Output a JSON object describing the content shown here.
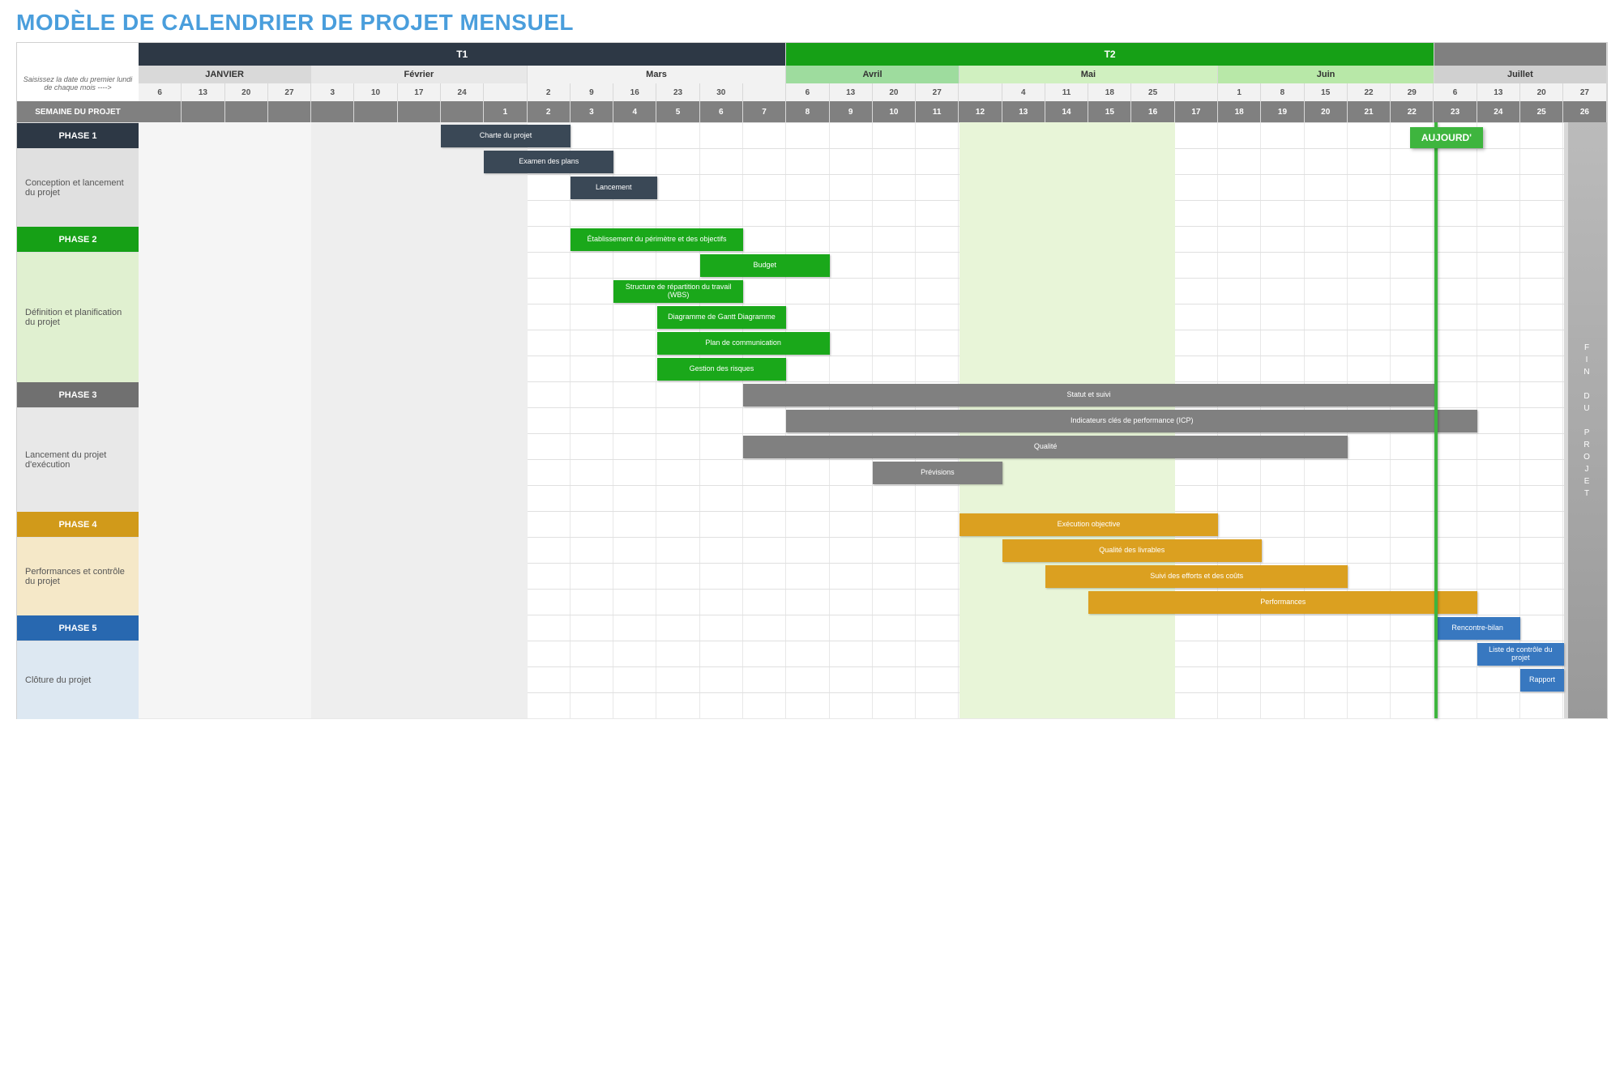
{
  "title": "MODÈLE DE CALENDRIER DE PROJET MENSUEL",
  "side_note": "Saisissez la date du premier lundi de chaque mois ---->",
  "week_label": "SEMAINE DU PROJET",
  "end_label": "FIN DU PROJET",
  "today_label": "AUJOURD'",
  "today_week": 23,
  "total_weeks": 30,
  "colors": {
    "title": "#4a9edc",
    "q1_bg": "#2d3845",
    "q2_bg": "#16a016",
    "q3_bg": "#808080",
    "m_jan": "#d9d9d9",
    "m_feb": "#e8e8e8",
    "m_mar": "#f2f2f2",
    "m_apr": "#9edc9e",
    "m_may": "#d0f0c0",
    "m_jun": "#b8e8a8",
    "m_jul": "#d0d0d0",
    "shade_jan": "#f5f5f5",
    "shade_feb": "#eeeeee",
    "shade_may": "#e8f5d8",
    "shade_end": "#d8d8d8",
    "phase1": "#2d3845",
    "phase1_bg": "#e0e0e0",
    "phase1_bar": "#3a4856",
    "phase2": "#16a016",
    "phase2_bg": "#e0f0d0",
    "phase2_bar": "#1aa81a",
    "phase3": "#707070",
    "phase3_bg": "#e8e8e8",
    "phase3_bar": "#808080",
    "phase4": "#d19a1a",
    "phase4_bg": "#f5e8c8",
    "phase4_bar": "#dba020",
    "phase5": "#2868b0",
    "phase5_bg": "#dde8f2",
    "phase5_bar": "#3878c0"
  },
  "quarters": [
    {
      "label": "T1",
      "span": 15,
      "color_key": "q1_bg"
    },
    {
      "label": "T2",
      "span": 15,
      "color_key": "q2_bg"
    },
    {
      "label": "",
      "span": 4,
      "color_key": "q3_bg"
    }
  ],
  "months": [
    {
      "label": "JANVIER",
      "span": 4,
      "bg_key": "m_jan"
    },
    {
      "label": "Février",
      "span": 5,
      "bg_key": "m_feb"
    },
    {
      "label": "Mars",
      "span": 6,
      "bg_key": "m_mar"
    },
    {
      "label": "Avril",
      "span": 4,
      "bg_key": "m_apr"
    },
    {
      "label": "Mai",
      "span": 6,
      "bg_key": "m_may"
    },
    {
      "label": "Juin",
      "span": 5,
      "bg_key": "m_jun"
    },
    {
      "label": "Juillet",
      "span": 4,
      "bg_key": "m_jul"
    }
  ],
  "days": [
    "6",
    "13",
    "20",
    "27",
    "3",
    "10",
    "17",
    "24",
    "",
    "2",
    "9",
    "16",
    "23",
    "30",
    "",
    "6",
    "13",
    "20",
    "27",
    "",
    "4",
    "11",
    "18",
    "25",
    "",
    "1",
    "8",
    "15",
    "22",
    "29",
    "6",
    "13",
    "20",
    "27"
  ],
  "weeks": [
    "",
    "",
    "",
    "",
    "",
    "",
    "",
    "",
    "1",
    "2",
    "3",
    "4",
    "5",
    "6",
    "7",
    "8",
    "9",
    "10",
    "11",
    "12",
    "13",
    "14",
    "15",
    "16",
    "17",
    "18",
    "19",
    "20",
    "21",
    "22",
    "23",
    "24",
    "25",
    "26"
  ],
  "shades": [
    {
      "start": 1,
      "span": 4,
      "color_key": "shade_jan"
    },
    {
      "start": 5,
      "span": 5,
      "color_key": "shade_feb"
    },
    {
      "start": 20,
      "span": 5,
      "color_key": "shade_may"
    },
    {
      "start": 34,
      "span": 1,
      "color_key": "shade_end"
    }
  ],
  "phases": [
    {
      "name": "PHASE 1",
      "desc": "Conception et lancement du projet",
      "color_key": "phase1",
      "bg_key": "phase1_bg",
      "bar_key": "phase1_bar",
      "rows": 4,
      "bars": [
        {
          "row": 0,
          "start": 8,
          "span": 3,
          "label": "Charte du projet"
        },
        {
          "row": 1,
          "start": 9,
          "span": 3,
          "label": "Examen des plans"
        },
        {
          "row": 2,
          "start": 11,
          "span": 2,
          "label": "Lancement"
        }
      ]
    },
    {
      "name": "PHASE 2",
      "desc": "Définition et planification du projet",
      "color_key": "phase2",
      "bg_key": "phase2_bg",
      "bar_key": "phase2_bar",
      "rows": 6,
      "bars": [
        {
          "row": 0,
          "start": 11,
          "span": 4,
          "label": "Établissement du périmètre et des objectifs"
        },
        {
          "row": 1,
          "start": 14,
          "span": 3,
          "label": "Budget"
        },
        {
          "row": 2,
          "start": 12,
          "span": 3,
          "label": "Structure de répartition du travail (WBS)"
        },
        {
          "row": 3,
          "start": 13,
          "span": 3,
          "label": "Diagramme de Gantt Diagramme"
        },
        {
          "row": 4,
          "start": 13,
          "span": 4,
          "label": "Plan de communication"
        },
        {
          "row": 5,
          "start": 13,
          "span": 3,
          "label": "Gestion des risques"
        }
      ]
    },
    {
      "name": "PHASE 3",
      "desc": "Lancement du projet d'exécution",
      "color_key": "phase3",
      "bg_key": "phase3_bg",
      "bar_key": "phase3_bar",
      "rows": 5,
      "bars": [
        {
          "row": 0,
          "start": 15,
          "span": 16,
          "label": "Statut et suivi"
        },
        {
          "row": 1,
          "start": 16,
          "span": 16,
          "label": "Indicateurs clés de performance (ICP)"
        },
        {
          "row": 2,
          "start": 15,
          "span": 14,
          "label": "Qualité"
        },
        {
          "row": 3,
          "start": 18,
          "span": 3,
          "label": "Prévisions"
        }
      ]
    },
    {
      "name": "PHASE 4",
      "desc": "Performances et contrôle du projet",
      "color_key": "phase4",
      "bg_key": "phase4_bg",
      "bar_key": "phase4_bar",
      "rows": 4,
      "bars": [
        {
          "row": 0,
          "start": 20,
          "span": 6,
          "label": "Exécution objective"
        },
        {
          "row": 1,
          "start": 21,
          "span": 6,
          "label": "Qualité des livrables"
        },
        {
          "row": 2,
          "start": 22,
          "span": 7,
          "label": "Suivi des efforts et des coûts"
        },
        {
          "row": 3,
          "start": 23,
          "span": 9,
          "label": "Performances"
        }
      ]
    },
    {
      "name": "PHASE 5",
      "desc": "Clôture du projet",
      "color_key": "phase5",
      "bg_key": "phase5_bg",
      "bar_key": "phase5_bar",
      "rows": 4,
      "bars": [
        {
          "row": 0,
          "start": 31,
          "span": 2,
          "label": "Rencontre-bilan"
        },
        {
          "row": 1,
          "start": 32,
          "span": 2,
          "label": "Liste de contrôle du projet"
        },
        {
          "row": 2,
          "start": 33,
          "span": 1,
          "label": "Rapport"
        }
      ]
    }
  ]
}
